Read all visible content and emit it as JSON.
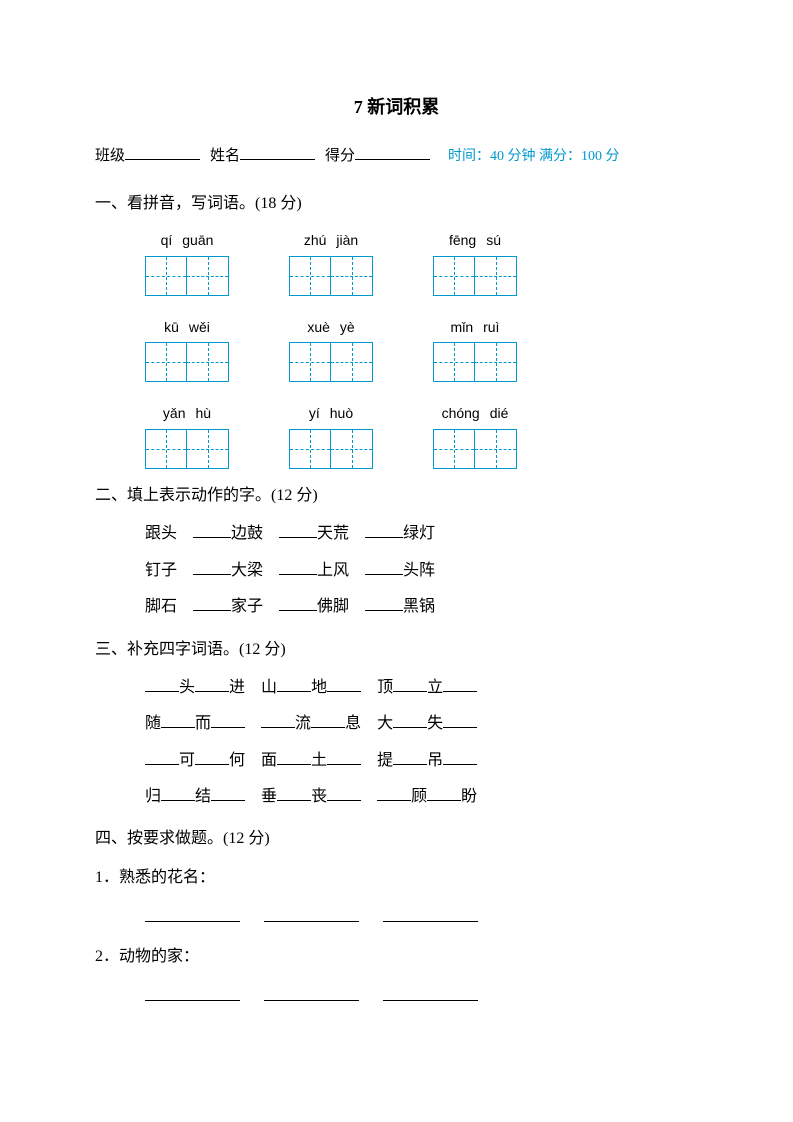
{
  "title": "7  新词积累",
  "header": {
    "class_label": "班级",
    "name_label": "姓名",
    "score_label": "得分",
    "time_info": "时间：40 分钟 满分：100 分"
  },
  "colors": {
    "accent": "#0099cc",
    "text": "#000000",
    "background": "#ffffff"
  },
  "section1": {
    "title": "一、看拼音，写词语。(18 分)",
    "items": [
      {
        "p1": "qí",
        "p2": "guān"
      },
      {
        "p1": "zhú",
        "p2": "jiàn"
      },
      {
        "p1": "fēng",
        "p2": "sú"
      },
      {
        "p1": "kū",
        "p2": "wěi"
      },
      {
        "p1": "xuè",
        "p2": "yè"
      },
      {
        "p1": "mǐn",
        "p2": "ruì"
      },
      {
        "p1": "yǎn",
        "p2": "hù"
      },
      {
        "p1": "yí",
        "p2": "huò"
      },
      {
        "p1": "chóng",
        "p2": "dié"
      }
    ]
  },
  "section2": {
    "title": "二、填上表示动作的字。(12 分)",
    "rows": [
      [
        "跟头",
        "边鼓",
        "天荒",
        "绿灯"
      ],
      [
        "钉子",
        "大梁",
        "上风",
        "头阵"
      ],
      [
        "脚石",
        "家子",
        "佛脚",
        "黑锅"
      ]
    ]
  },
  "section3": {
    "title": "三、补充四字词语。(12 分)",
    "lines": [
      [
        [
          "",
          "头",
          "",
          "进"
        ],
        [
          "山",
          "",
          "地",
          ""
        ],
        [
          "顶",
          "",
          "立",
          ""
        ]
      ],
      [
        [
          "随",
          "",
          "而",
          ""
        ],
        [
          "",
          "流",
          "",
          "息"
        ],
        [
          "大",
          "",
          "失",
          ""
        ]
      ],
      [
        [
          "",
          "可",
          "",
          "何"
        ],
        [
          "面",
          "",
          "土",
          ""
        ],
        [
          "提",
          "",
          "吊",
          ""
        ]
      ],
      [
        [
          "归",
          "",
          "结",
          ""
        ],
        [
          "垂",
          "",
          "丧",
          ""
        ],
        [
          "",
          "顾",
          "",
          "盼"
        ]
      ]
    ]
  },
  "section4": {
    "title": "四、按要求做题。(12 分)",
    "q1": "1．熟悉的花名：",
    "q2": "2．动物的家："
  }
}
